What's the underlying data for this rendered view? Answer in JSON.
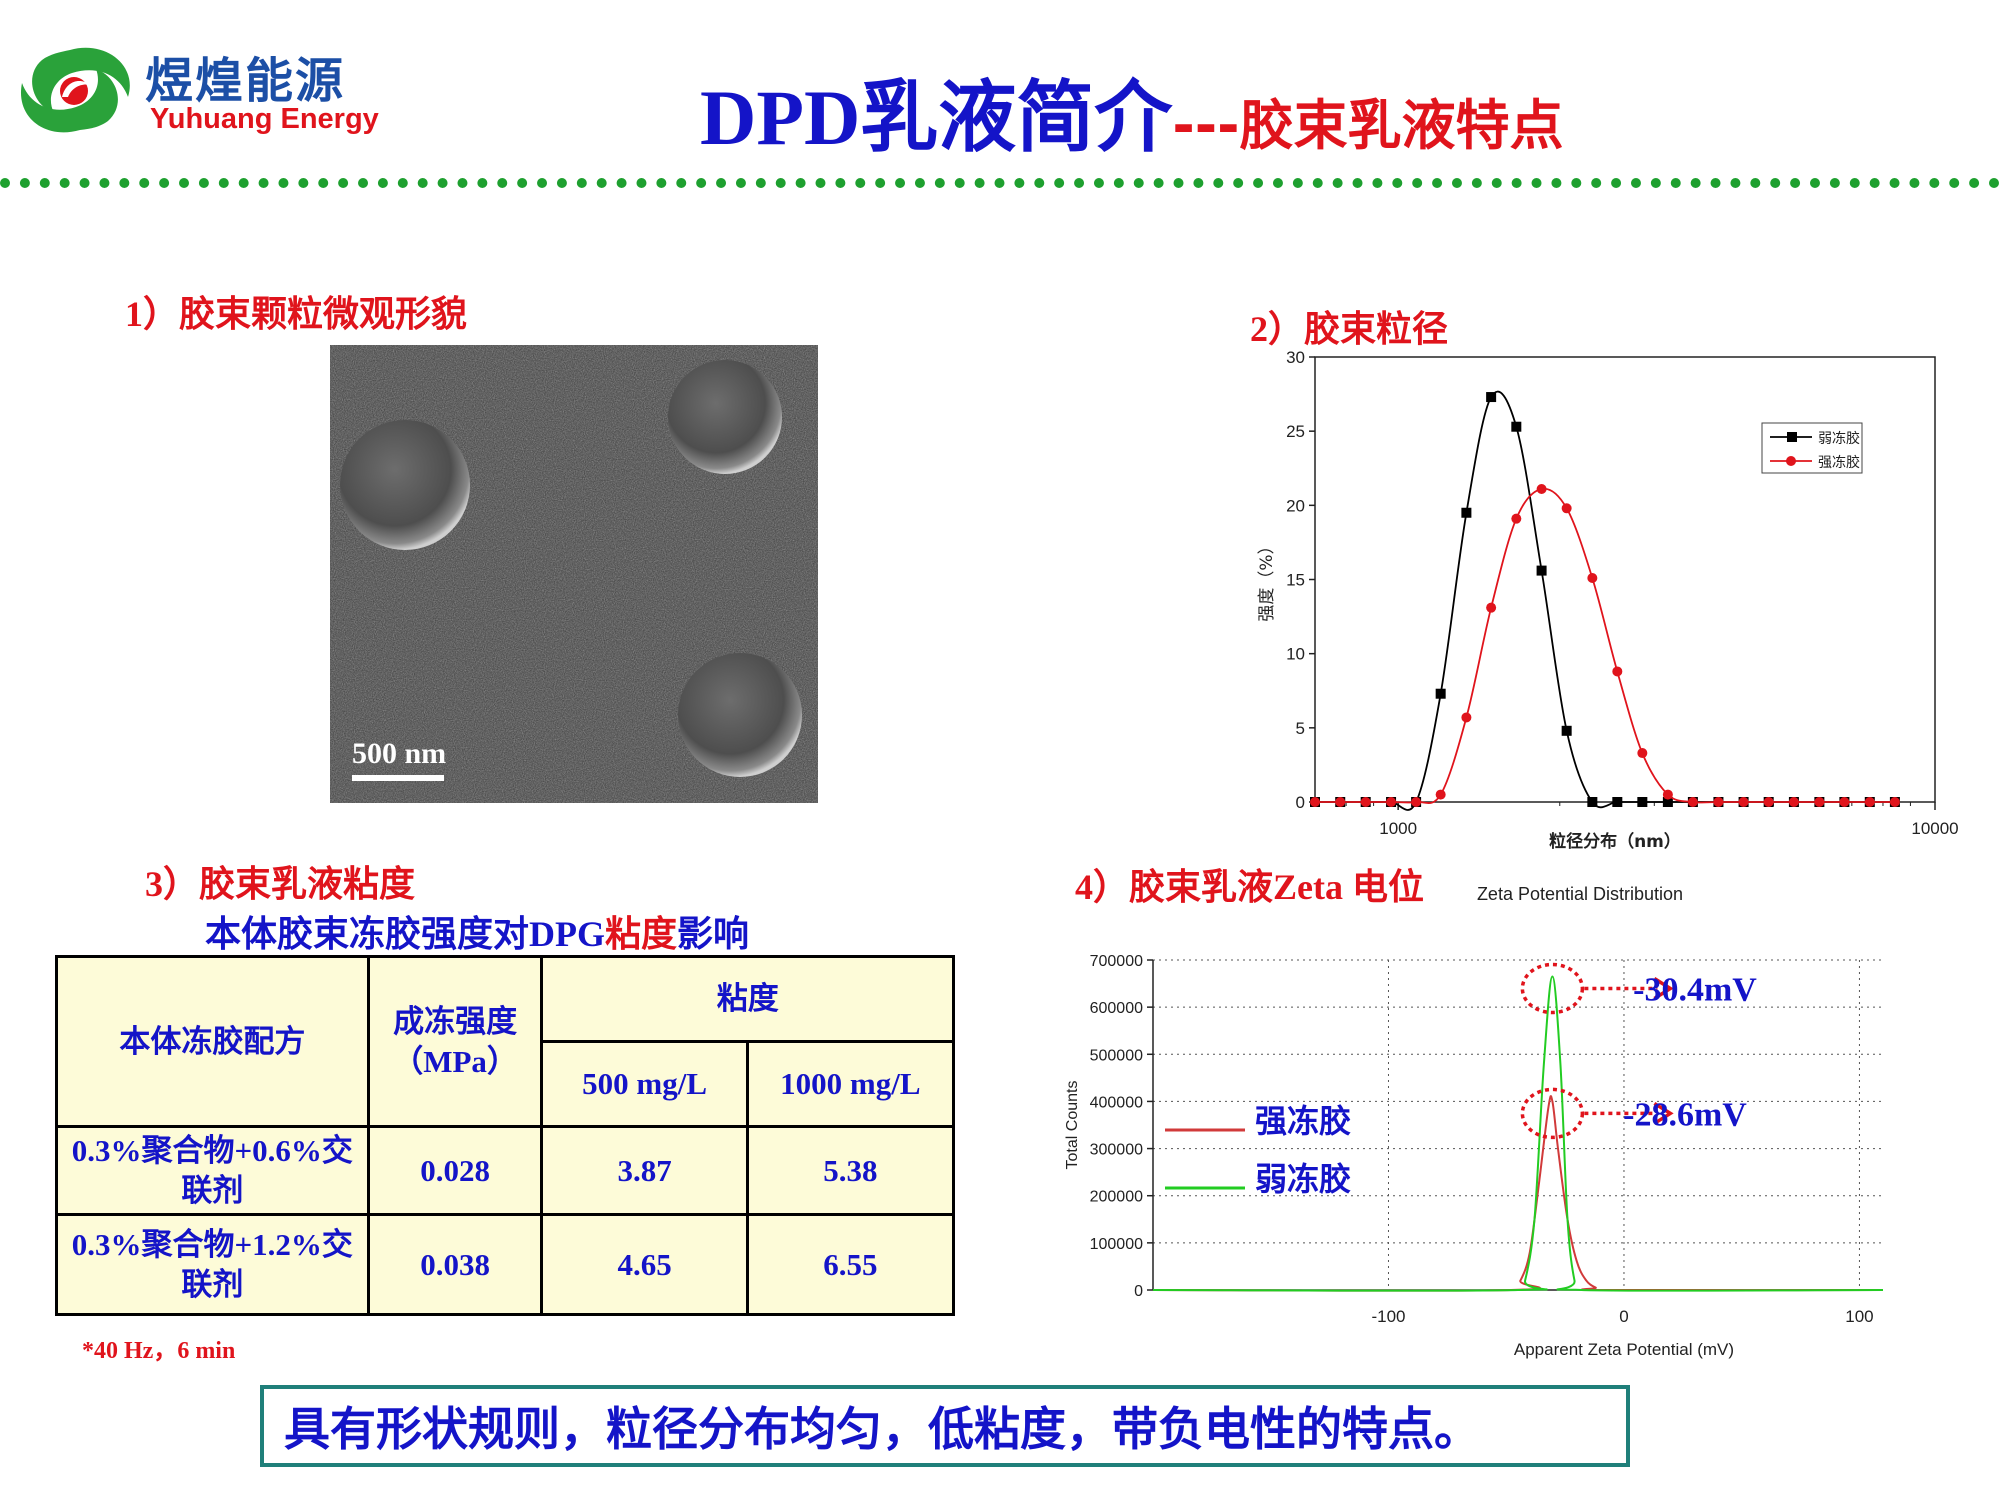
{
  "header": {
    "logo_cn": "煜煌能源",
    "logo_en": "Yuhuang Energy",
    "title_main": "DPD乳液简介",
    "title_sub": "---胶束乳液特点"
  },
  "sections": {
    "s1": "1）胶束颗粒微观形貌",
    "s2": "2）胶束粒径",
    "s3": "3）胶束乳液粘度",
    "s4": "4）胶束乳液Zeta 电位"
  },
  "micrograph": {
    "scale_label": "500 nm"
  },
  "table": {
    "caption_part1": "本体胶束冻胶强度对DPG",
    "caption_part2": "粘度",
    "caption_part3": "影响",
    "headers": {
      "formula": "本体冻胶配方",
      "strength": "成冻强度（MPa）",
      "viscosity": "粘度",
      "c500": "500 mg/L",
      "c1000": "1000 mg/L"
    },
    "rows": [
      {
        "formula": "0.3%聚合物+0.6%交联剂",
        "strength": "0.028",
        "v500": "3.87",
        "v1000": "5.38"
      },
      {
        "formula": "0.3%聚合物+1.2%交联剂",
        "strength": "0.038",
        "v500": "4.65",
        "v1000": "6.55"
      }
    ],
    "footnote": "*40 Hz，6 min"
  },
  "conclusion": "具有形状规则，粒径分布均匀，低粘度，带负电性的特点。",
  "colors": {
    "accent_blue": "#1414c8",
    "accent_red": "#e0141c",
    "divider_green": "#1ea02f"
  },
  "chart_data": [
    {
      "type": "line",
      "xlabel": "粒径分布（nm）",
      "ylabel": "强度（%）",
      "xscale": "log",
      "xlim": [
        700,
        10000
      ],
      "ylim": [
        0,
        30
      ],
      "x_tick_labels": [
        "1000",
        "10000"
      ],
      "y_ticks": [
        0,
        5,
        10,
        15,
        20,
        25,
        30
      ],
      "legend_position": "top-right",
      "series": [
        {
          "name": "弱冻胶",
          "color": "#000000",
          "marker": "square",
          "x": [
            700,
            780,
            870,
            970,
            1080,
            1200,
            1340,
            1490,
            1660,
            1850,
            2060,
            2300,
            2560,
            2850,
            3180,
            3540,
            3950,
            4400,
            4900,
            5460,
            6090,
            6780,
            7560,
            8420
          ],
          "y": [
            0,
            0,
            0,
            0,
            0,
            7.3,
            19.5,
            27.3,
            25.3,
            15.6,
            4.8,
            0,
            0,
            0,
            0,
            0,
            0,
            0,
            0,
            0,
            0,
            0,
            0,
            0
          ]
        },
        {
          "name": "强冻胶",
          "color": "#e0141c",
          "marker": "circle",
          "x": [
            700,
            780,
            870,
            970,
            1080,
            1200,
            1340,
            1490,
            1660,
            1850,
            2060,
            2300,
            2560,
            2850,
            3180,
            3540,
            3950,
            4400,
            4900,
            5460,
            6090,
            6780,
            7560,
            8420
          ],
          "y": [
            0,
            0,
            0,
            0,
            0,
            0.5,
            5.7,
            13.1,
            19.1,
            21.1,
            19.8,
            15.1,
            8.8,
            3.3,
            0.5,
            0,
            0,
            0,
            0,
            0,
            0,
            0,
            0,
            0
          ]
        }
      ]
    },
    {
      "type": "line",
      "title": "Zeta Potential Distribution",
      "xlabel": "Apparent Zeta Potential (mV)",
      "ylabel": "Total Counts",
      "xlim": [
        -200,
        110
      ],
      "ylim": [
        0,
        700000
      ],
      "x_ticks": [
        -100,
        0,
        100
      ],
      "y_ticks": [
        0,
        100000,
        200000,
        300000,
        400000,
        500000,
        600000,
        700000
      ],
      "grid": true,
      "series": [
        {
          "name": "强冻胶",
          "color": "#d13a3a",
          "x": [
            -200,
            -48,
            -44,
            -40,
            -36,
            -32,
            -30.4,
            -28,
            -24,
            -20,
            -16,
            -12,
            -8,
            110
          ],
          "y": [
            0,
            0,
            20000,
            80000,
            230000,
            390000,
            400000,
            300000,
            150000,
            60000,
            20000,
            5000,
            0,
            0
          ]
        },
        {
          "name": "弱冻胶",
          "color": "#22cc22",
          "x": [
            -200,
            -45,
            -42,
            -38,
            -34,
            -30.4,
            -27,
            -24,
            -21,
            -18,
            110
          ],
          "y": [
            0,
            0,
            20000,
            150000,
            480000,
            665000,
            480000,
            150000,
            20000,
            0,
            0
          ]
        }
      ],
      "annotations": [
        "-30.4mV",
        "-28.6mV"
      ]
    }
  ]
}
